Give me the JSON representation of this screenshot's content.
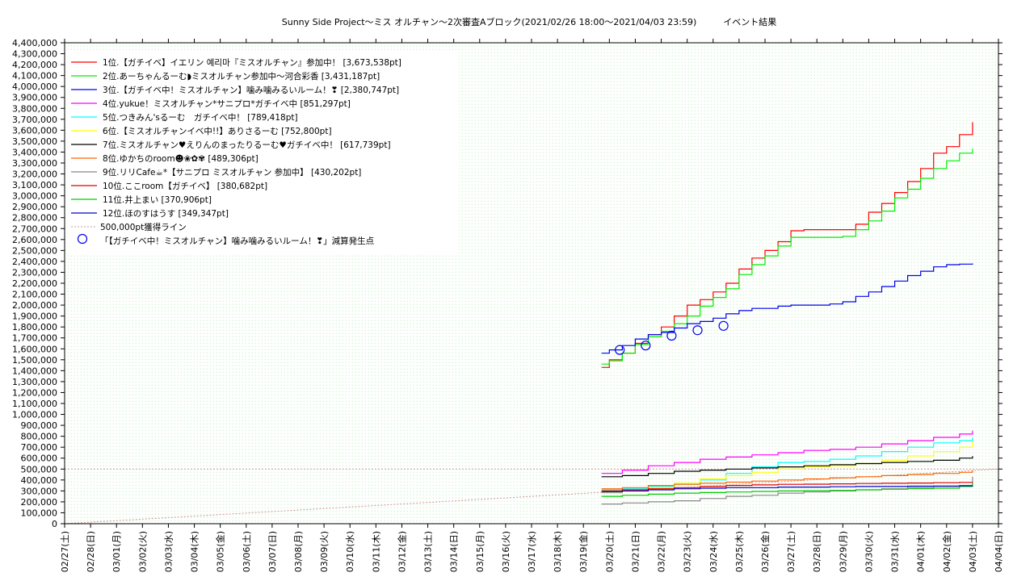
{
  "chart_data": {
    "type": "line",
    "title": "Sunny Side Project～ミス オルチャン～2次審査Aブロック(2021/02/26 18:00～2021/04/03 23:59)　　　イベント結果",
    "xlabel": "",
    "ylabel": "",
    "ylim": [
      0,
      4400000
    ],
    "y_ticks": [
      "0",
      "100,000",
      "200,000",
      "300,000",
      "400,000",
      "500,000",
      "600,000",
      "700,000",
      "800,000",
      "900,000",
      "1,000,000",
      "1,100,000",
      "1,200,000",
      "1,300,000",
      "1,400,000",
      "1,500,000",
      "1,600,000",
      "1,700,000",
      "1,800,000",
      "1,900,000",
      "2,000,000",
      "2,100,000",
      "2,200,000",
      "2,300,000",
      "2,400,000",
      "2,500,000",
      "2,600,000",
      "2,700,000",
      "2,800,000",
      "2,900,000",
      "3,000,000",
      "3,100,000",
      "3,200,000",
      "3,300,000",
      "3,400,000",
      "3,500,000",
      "3,600,000",
      "3,700,000",
      "3,800,000",
      "3,900,000",
      "4,000,000",
      "4,100,000",
      "4,200,000",
      "4,300,000",
      "4,400,000"
    ],
    "categories": [
      "02/27(土)",
      "02/28(日)",
      "03/01(月)",
      "03/02(火)",
      "03/03(水)",
      "03/04(木)",
      "03/05(金)",
      "03/06(土)",
      "03/07(日)",
      "03/08(月)",
      "03/09(火)",
      "03/10(水)",
      "03/11(木)",
      "03/12(金)",
      "03/13(土)",
      "03/14(日)",
      "03/15(月)",
      "03/16(火)",
      "03/17(水)",
      "03/18(木)",
      "03/19(金)",
      "03/20(土)",
      "03/21(日)",
      "03/22(月)",
      "03/23(火)",
      "03/24(水)",
      "03/25(木)",
      "03/26(金)",
      "03/27(土)",
      "03/28(日)",
      "03/29(月)",
      "03/30(火)",
      "03/31(水)",
      "04/01(木)",
      "04/02(金)",
      "04/03(土)",
      "04/04(日)"
    ],
    "x_range_days": [
      0,
      36
    ],
    "grid": true,
    "legend_position": "top-left",
    "series": [
      {
        "name": "1位.【ガチイベ】イエリン 예리마『ミスオルチャン』参加中！ [3,673,538pt]",
        "color": "#ff0000",
        "points": [
          [
            20.7,
            1430000
          ],
          [
            21,
            1500000
          ],
          [
            21.5,
            1560000
          ],
          [
            22,
            1650000
          ],
          [
            22.5,
            1730000
          ],
          [
            23,
            1800000
          ],
          [
            23.5,
            1900000
          ],
          [
            24,
            2000000
          ],
          [
            24.5,
            2050000
          ],
          [
            25,
            2120000
          ],
          [
            25.5,
            2200000
          ],
          [
            26,
            2330000
          ],
          [
            26.5,
            2430000
          ],
          [
            27,
            2500000
          ],
          [
            27.5,
            2580000
          ],
          [
            28,
            2680000
          ],
          [
            28.5,
            2690000
          ],
          [
            29,
            2690000
          ],
          [
            29.5,
            2690000
          ],
          [
            30,
            2690000
          ],
          [
            30.5,
            2740000
          ],
          [
            31,
            2850000
          ],
          [
            31.5,
            2930000
          ],
          [
            32,
            3030000
          ],
          [
            32.5,
            3130000
          ],
          [
            33,
            3250000
          ],
          [
            33.5,
            3390000
          ],
          [
            34,
            3450000
          ],
          [
            34.5,
            3560000
          ],
          [
            35,
            3673538
          ]
        ]
      },
      {
        "name": "2位.あーちゃんるーむ◗ミスオルチャン参加中〜河合彩香 [3,431,187pt]",
        "color": "#00ee00",
        "points": [
          [
            20.7,
            1460000
          ],
          [
            21,
            1490000
          ],
          [
            21.5,
            1560000
          ],
          [
            22,
            1640000
          ],
          [
            22.5,
            1710000
          ],
          [
            23,
            1760000
          ],
          [
            23.5,
            1830000
          ],
          [
            24,
            1900000
          ],
          [
            24.5,
            1990000
          ],
          [
            25,
            2070000
          ],
          [
            25.5,
            2150000
          ],
          [
            26,
            2280000
          ],
          [
            26.5,
            2370000
          ],
          [
            27,
            2450000
          ],
          [
            27.5,
            2540000
          ],
          [
            28,
            2620000
          ],
          [
            28.5,
            2620000
          ],
          [
            29,
            2620000
          ],
          [
            29.5,
            2620000
          ],
          [
            30,
            2630000
          ],
          [
            30.5,
            2690000
          ],
          [
            31,
            2770000
          ],
          [
            31.5,
            2860000
          ],
          [
            32,
            2980000
          ],
          [
            32.5,
            3060000
          ],
          [
            33,
            3160000
          ],
          [
            33.5,
            3250000
          ],
          [
            34,
            3320000
          ],
          [
            34.5,
            3390000
          ],
          [
            35,
            3431187
          ]
        ]
      },
      {
        "name": "3位.【ガチイベ中！ミスオルチャン】噛み噛みるいルーム！❣ [2,380,747pt]",
        "color": "#0000ee",
        "points": [
          [
            20.7,
            1560000
          ],
          [
            21,
            1590000
          ],
          [
            21.5,
            1630000
          ],
          [
            22,
            1690000
          ],
          [
            22.5,
            1730000
          ],
          [
            23,
            1750000
          ],
          [
            23.5,
            1790000
          ],
          [
            24,
            1830000
          ],
          [
            24.5,
            1850000
          ],
          [
            25,
            1880000
          ],
          [
            25.5,
            1920000
          ],
          [
            26,
            1950000
          ],
          [
            26.5,
            1970000
          ],
          [
            27,
            1970000
          ],
          [
            27.5,
            1990000
          ],
          [
            28,
            2000000
          ],
          [
            28.5,
            2000000
          ],
          [
            29,
            2000000
          ],
          [
            29.5,
            2010000
          ],
          [
            30,
            2030000
          ],
          [
            30.5,
            2080000
          ],
          [
            31,
            2120000
          ],
          [
            31.5,
            2170000
          ],
          [
            32,
            2220000
          ],
          [
            32.5,
            2270000
          ],
          [
            33,
            2310000
          ],
          [
            33.5,
            2350000
          ],
          [
            34,
            2370000
          ],
          [
            34.5,
            2375000
          ],
          [
            35,
            2380747
          ]
        ]
      },
      {
        "name": "4位.yukue！ミスオルチャン*サニプロ*ガチイベ中 [851,297pt]",
        "color": "#ff00ff",
        "points": [
          [
            20.7,
            460000
          ],
          [
            21.5,
            490000
          ],
          [
            22.5,
            530000
          ],
          [
            23.5,
            560000
          ],
          [
            24.5,
            590000
          ],
          [
            25.5,
            610000
          ],
          [
            26.5,
            630000
          ],
          [
            27.5,
            650000
          ],
          [
            28.5,
            670000
          ],
          [
            29.5,
            680000
          ],
          [
            30.5,
            700000
          ],
          [
            31.5,
            730000
          ],
          [
            32.5,
            760000
          ],
          [
            33.5,
            790000
          ],
          [
            34.5,
            820000
          ],
          [
            35,
            851297
          ]
        ]
      },
      {
        "name": "5位.つきみん'sるーむ　ガチイベ中！ [789,418pt]",
        "color": "#00ffff",
        "points": [
          [
            20.7,
            310000
          ],
          [
            21.5,
            320000
          ],
          [
            22.5,
            340000
          ],
          [
            23.5,
            360000
          ],
          [
            24.5,
            400000
          ],
          [
            25.5,
            460000
          ],
          [
            26.5,
            520000
          ],
          [
            27.5,
            560000
          ],
          [
            28.5,
            570000
          ],
          [
            29.5,
            590000
          ],
          [
            30.5,
            620000
          ],
          [
            31.5,
            660000
          ],
          [
            32.5,
            700000
          ],
          [
            33.5,
            740000
          ],
          [
            34.5,
            760000
          ],
          [
            35,
            789418
          ]
        ]
      },
      {
        "name": "6位.【ミスオルチャンイベ中!!】ありさるーむ [752,800pt]",
        "color": "#ffff00",
        "points": [
          [
            20.7,
            280000
          ],
          [
            21.5,
            300000
          ],
          [
            22.5,
            330000
          ],
          [
            23.5,
            370000
          ],
          [
            24.5,
            410000
          ],
          [
            25.5,
            440000
          ],
          [
            26.5,
            470000
          ],
          [
            27.5,
            500000
          ],
          [
            28.5,
            520000
          ],
          [
            29.5,
            530000
          ],
          [
            30.5,
            550000
          ],
          [
            31.5,
            580000
          ],
          [
            32.5,
            620000
          ],
          [
            33.5,
            660000
          ],
          [
            34.5,
            700000
          ],
          [
            35,
            752800
          ]
        ]
      },
      {
        "name": "7位.ミスオルチャン♥えりんのまったりるーむ♥ガチイベ中！ [617,739pt]",
        "color": "#000000",
        "points": [
          [
            20.7,
            430000
          ],
          [
            21.5,
            440000
          ],
          [
            22.5,
            460000
          ],
          [
            23.5,
            480000
          ],
          [
            24.5,
            490000
          ],
          [
            25.5,
            500000
          ],
          [
            26.5,
            510000
          ],
          [
            27.5,
            520000
          ],
          [
            28.5,
            530000
          ],
          [
            29.5,
            540000
          ],
          [
            30.5,
            550000
          ],
          [
            31.5,
            560000
          ],
          [
            32.5,
            570000
          ],
          [
            33.5,
            580000
          ],
          [
            34.5,
            600000
          ],
          [
            35,
            617739
          ]
        ]
      },
      {
        "name": "8位.ゆかちのroom☻❀✿✾ [489,306pt]",
        "color": "#ff6600",
        "points": [
          [
            20.7,
            320000
          ],
          [
            21.5,
            330000
          ],
          [
            22.5,
            350000
          ],
          [
            23.5,
            360000
          ],
          [
            24.5,
            370000
          ],
          [
            25.5,
            380000
          ],
          [
            26.5,
            390000
          ],
          [
            27.5,
            400000
          ],
          [
            28.5,
            410000
          ],
          [
            29.5,
            420000
          ],
          [
            30.5,
            430000
          ],
          [
            31.5,
            440000
          ],
          [
            32.5,
            450000
          ],
          [
            33.5,
            460000
          ],
          [
            34.5,
            470000
          ],
          [
            35,
            489306
          ]
        ]
      },
      {
        "name": "9位.リリCafe☕*【サニプロ ミスオルチャン 参加中】 [430,202pt]",
        "color": "#888888",
        "points": [
          [
            20.7,
            180000
          ],
          [
            21.5,
            190000
          ],
          [
            22.5,
            200000
          ],
          [
            23.5,
            210000
          ],
          [
            24.5,
            230000
          ],
          [
            25.5,
            250000
          ],
          [
            26.5,
            260000
          ],
          [
            27.5,
            280000
          ],
          [
            28.5,
            290000
          ],
          [
            29.5,
            300000
          ],
          [
            30.5,
            310000
          ],
          [
            31.5,
            320000
          ],
          [
            32.5,
            330000
          ],
          [
            33.5,
            340000
          ],
          [
            34.5,
            350000
          ],
          [
            35,
            430202
          ]
        ]
      },
      {
        "name": "10位.ここroom【ガチイベ】 [380,682pt]",
        "color": "#dd0000",
        "points": [
          [
            20.7,
            300000
          ],
          [
            21.5,
            310000
          ],
          [
            22.5,
            320000
          ],
          [
            23.5,
            330000
          ],
          [
            24.5,
            340000
          ],
          [
            25.5,
            350000
          ],
          [
            26.5,
            355000
          ],
          [
            27.5,
            360000
          ],
          [
            28.5,
            362000
          ],
          [
            29.5,
            365000
          ],
          [
            30.5,
            368000
          ],
          [
            31.5,
            370000
          ],
          [
            32.5,
            372000
          ],
          [
            33.5,
            375000
          ],
          [
            34.5,
            378000
          ],
          [
            35,
            380682
          ]
        ]
      },
      {
        "name": "11位.井上まい [370,906pt]",
        "color": "#00cc00",
        "points": [
          [
            20.7,
            250000
          ],
          [
            21.5,
            260000
          ],
          [
            22.5,
            270000
          ],
          [
            23.5,
            280000
          ],
          [
            24.5,
            285000
          ],
          [
            25.5,
            290000
          ],
          [
            26.5,
            295000
          ],
          [
            27.5,
            300000
          ],
          [
            28.5,
            302000
          ],
          [
            29.5,
            305000
          ],
          [
            30.5,
            310000
          ],
          [
            31.5,
            315000
          ],
          [
            32.5,
            320000
          ],
          [
            33.5,
            325000
          ],
          [
            34.5,
            340000
          ],
          [
            35,
            370906
          ]
        ]
      },
      {
        "name": "12位.ほのすはうす [349,347pt]",
        "color": "#0000cc",
        "points": [
          [
            20.7,
            290000
          ],
          [
            21.5,
            300000
          ],
          [
            22.5,
            310000
          ],
          [
            23.5,
            320000
          ],
          [
            24.5,
            325000
          ],
          [
            25.5,
            330000
          ],
          [
            26.5,
            330000
          ],
          [
            27.5,
            335000
          ],
          [
            28.5,
            335000
          ],
          [
            29.5,
            338000
          ],
          [
            30.5,
            340000
          ],
          [
            31.5,
            340000
          ],
          [
            32.5,
            343000
          ],
          [
            33.5,
            345000
          ],
          [
            34.5,
            347000
          ],
          [
            35,
            349347
          ]
        ]
      }
    ],
    "reference_line": {
      "name": "500,000pt獲得ライン",
      "value": 500000,
      "color": "#cc9999"
    },
    "markers": {
      "name": "「【ガチイベ中！ミスオルチャン】噛み噛みるいルーム！❣」減算発生点",
      "color": "#0000ee",
      "points": [
        [
          21.4,
          1590000
        ],
        [
          22.4,
          1630000
        ],
        [
          23.4,
          1720000
        ],
        [
          24.4,
          1770000
        ],
        [
          25.4,
          1810000
        ]
      ]
    }
  }
}
